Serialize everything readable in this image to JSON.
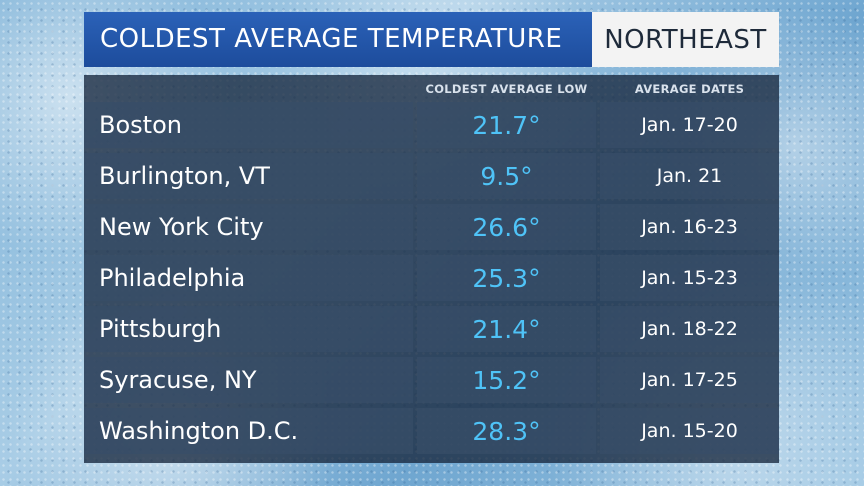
{
  "header": {
    "title": "COLDEST AVERAGE TEMPERATURE",
    "region": "NORTHEAST"
  },
  "table": {
    "columns": [
      "",
      "COLDEST AVERAGE LOW",
      "AVERAGE DATES"
    ],
    "rows": [
      {
        "city": "Boston",
        "low": "21.7°",
        "dates": "Jan. 17-20"
      },
      {
        "city": "Burlington, VT",
        "low": "9.5°",
        "dates": "Jan. 21"
      },
      {
        "city": "New York City",
        "low": "26.6°",
        "dates": "Jan. 16-23"
      },
      {
        "city": "Philadelphia",
        "low": "25.3°",
        "dates": "Jan. 15-23"
      },
      {
        "city": "Pittsburgh",
        "low": "21.4°",
        "dates": "Jan. 18-22"
      },
      {
        "city": "Syracuse, NY",
        "low": "15.2°",
        "dates": "Jan. 17-25"
      },
      {
        "city": "Washington D.C.",
        "low": "28.3°",
        "dates": "Jan. 15-20"
      }
    ]
  },
  "colors": {
    "title_bar": "#1d4c9c",
    "temp_value": "#4fc3f7",
    "cell_bg": "#374e68"
  }
}
